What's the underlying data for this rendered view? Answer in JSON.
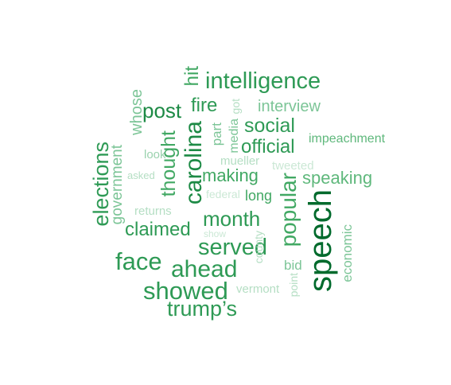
{
  "words": {
    "speech": "speech",
    "intelligence": "intelligence",
    "carolina": "carolina",
    "popular": "popular",
    "face": "face",
    "served": "served",
    "ahead": "ahead",
    "showed": "showed",
    "trumps": "trump’s",
    "month": "month",
    "elections": "elections",
    "post": "post",
    "social": "social",
    "official": "official",
    "claimed": "claimed",
    "thought": "thought",
    "fire": "fire",
    "interview": "interview",
    "making": "making",
    "speaking": "speaking",
    "hit": "hit",
    "whose": "whose",
    "government": "government",
    "long": "long",
    "impeachment": "impeachment",
    "economic": "economic",
    "part": "part",
    "media": "media",
    "got": "got",
    "look": "look",
    "mueller": "mueller",
    "tweeted": "tweeted",
    "asked": "asked",
    "federal": "federal",
    "returns": "returns",
    "show": "show",
    "county": "county",
    "bid": "bid",
    "point": "point",
    "vermont": "vermont"
  }
}
